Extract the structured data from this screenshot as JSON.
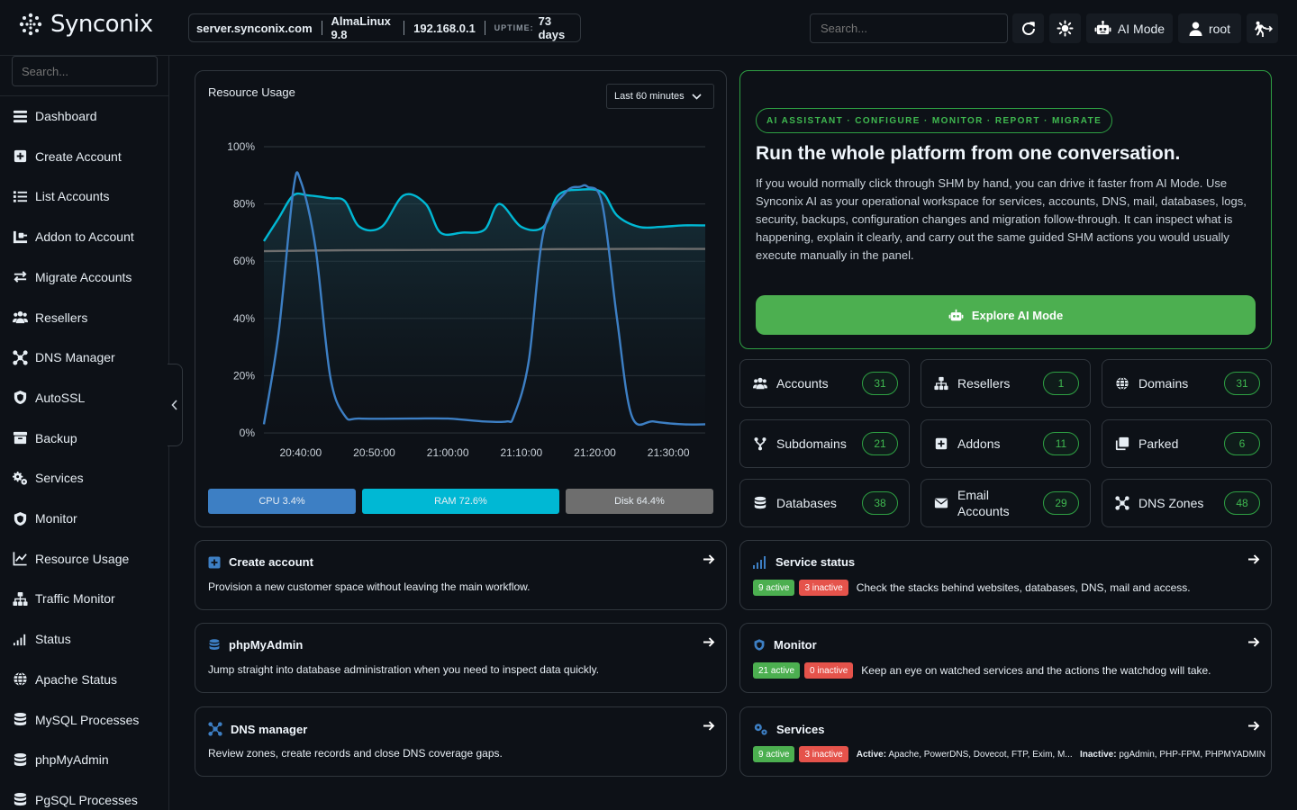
{
  "app": {
    "name": "Synconix"
  },
  "topbar": {
    "hostname": "server.synconix.com",
    "os": "AlmaLinux 9.8",
    "ip": "192.168.0.1",
    "uptime_label": "UPTIME:",
    "uptime_value": "73 days",
    "search_placeholder": "Search...",
    "ai_mode_label": "AI Mode",
    "user_label": "root"
  },
  "sidebar": {
    "search_placeholder": "Search...",
    "items": [
      {
        "label": "Dashboard",
        "icon": "dashboard-icon"
      },
      {
        "label": "Create Account",
        "icon": "plus-square-icon"
      },
      {
        "label": "List Accounts",
        "icon": "list-icon"
      },
      {
        "label": "Addon to Account",
        "icon": "addon-icon"
      },
      {
        "label": "Migrate Accounts",
        "icon": "swap-icon"
      },
      {
        "label": "Resellers",
        "icon": "users-icon"
      },
      {
        "label": "DNS Manager",
        "icon": "network-icon"
      },
      {
        "label": "AutoSSL",
        "icon": "shield-icon"
      },
      {
        "label": "Backup",
        "icon": "archive-icon"
      },
      {
        "label": "Services",
        "icon": "gears-icon"
      },
      {
        "label": "Monitor",
        "icon": "shield-icon"
      },
      {
        "label": "Resource Usage",
        "icon": "line-chart-icon"
      },
      {
        "label": "Traffic Monitor",
        "icon": "sitemap-icon"
      },
      {
        "label": "Status",
        "icon": "signal-icon"
      },
      {
        "label": "Apache Status",
        "icon": "globe-icon"
      },
      {
        "label": "MySQL Processes",
        "icon": "database-icon"
      },
      {
        "label": "phpMyAdmin",
        "icon": "database-icon"
      },
      {
        "label": "PgSQL Processes",
        "icon": "database-icon"
      }
    ]
  },
  "usage": {
    "title": "Resource Usage",
    "range": "Last 60 minutes",
    "meters": [
      {
        "label": "CPU 3.4%",
        "value": 3.4,
        "color": "#3d7fc4"
      },
      {
        "label": "RAM 72.6%",
        "value": 72.6,
        "color": "#00b8d4"
      },
      {
        "label": "Disk 64.4%",
        "value": 64.4,
        "color": "#6e6e6e"
      }
    ]
  },
  "chart_data": {
    "type": "line",
    "yticks": [
      "100%",
      "80%",
      "60%",
      "40%",
      "20%",
      "0%"
    ],
    "ylim": [
      0,
      100
    ],
    "xticks": [
      "20:40:00",
      "20:50:00",
      "21:00:00",
      "21:10:00",
      "21:20:00",
      "21:30:00"
    ],
    "xlim": [
      0,
      60
    ],
    "series": [
      {
        "color": "#00b8d4",
        "x": [
          0,
          2,
          4,
          6,
          9,
          11,
          13,
          16,
          19,
          22,
          24,
          27,
          30,
          32,
          35,
          38,
          40,
          43,
          46,
          48,
          51,
          54,
          57,
          60
        ],
        "y": [
          67,
          75,
          83,
          83,
          82,
          81,
          72,
          72,
          83,
          80,
          70,
          70,
          71,
          80,
          72,
          72,
          83,
          85,
          84,
          76,
          72,
          72,
          72.5,
          72.5
        ]
      },
      {
        "color": "#6e6e6e",
        "x": [
          0,
          10,
          20,
          30,
          40,
          50,
          60
        ],
        "y": [
          63.5,
          63.8,
          63.9,
          64.0,
          64.2,
          64.3,
          64.3
        ]
      },
      {
        "color": "#3d7fc4",
        "x": [
          0,
          2,
          4,
          5,
          7,
          9,
          11,
          13,
          20,
          25,
          30,
          33,
          34,
          36,
          38,
          41,
          43,
          44,
          46,
          48,
          50,
          53,
          57,
          60
        ],
        "y": [
          3,
          35,
          85,
          88,
          65,
          20,
          6,
          5,
          5,
          5,
          4,
          4,
          6,
          25,
          70,
          84,
          86,
          86,
          80,
          40,
          6,
          4,
          3,
          3
        ]
      }
    ]
  },
  "ai_panel": {
    "badge": "AI ASSISTANT · CONFIGURE · MONITOR · REPORT · MIGRATE",
    "title": "Run the whole platform from one conversation.",
    "description": "If you would normally click through SHM by hand, you can drive it faster from AI Mode. Use Synconix AI as your operational workspace for services, accounts, DNS, mail, databases, logs, security, backups, configuration changes and migration follow-through. It can inspect what is happening, explain it clearly, and carry out the same guided SHM actions you would usually execute manually in the panel.",
    "button": "Explore AI Mode"
  },
  "stats": [
    {
      "label": "Accounts",
      "count": "31",
      "icon": "users-icon"
    },
    {
      "label": "Resellers",
      "count": "1",
      "icon": "sitemap-icon"
    },
    {
      "label": "Domains",
      "count": "31",
      "icon": "globe-icon"
    },
    {
      "label": "Subdomains",
      "count": "21",
      "icon": "branch-icon"
    },
    {
      "label": "Addons",
      "count": "11",
      "icon": "plus-square-icon"
    },
    {
      "label": "Parked",
      "count": "6",
      "icon": "copy-icon"
    },
    {
      "label": "Databases",
      "count": "38",
      "icon": "database-icon"
    },
    {
      "label": "Email Accounts",
      "count": "29",
      "icon": "envelope-icon"
    },
    {
      "label": "DNS Zones",
      "count": "48",
      "icon": "network-icon"
    }
  ],
  "shortcuts_left": [
    {
      "title": "Create account",
      "desc": "Provision a new customer space without leaving the main workflow."
    },
    {
      "title": "phpMyAdmin",
      "desc": "Jump straight into database administration when you need to inspect data quickly."
    },
    {
      "title": "DNS manager",
      "desc": "Review zones, create records and close DNS coverage gaps."
    }
  ],
  "shortcuts_right": [
    {
      "title": "Service status",
      "active": "9 active",
      "inactive": "3 inactive",
      "desc": "Check the stacks behind websites, databases, DNS, mail and access."
    },
    {
      "title": "Monitor",
      "active": "21 active",
      "inactive": "0 inactive",
      "desc": "Keep an eye on watched services and the actions the watchdog will take."
    },
    {
      "title": "Services",
      "active": "9 active",
      "inactive": "3 inactive",
      "active_label": "Active:",
      "active_list": "Apache, PowerDNS, Dovecot, FTP, Exim, M...",
      "inactive_label": "Inactive:",
      "inactive_list": "pgAdmin, PHP-FPM, PHPMYADMIN"
    }
  ]
}
